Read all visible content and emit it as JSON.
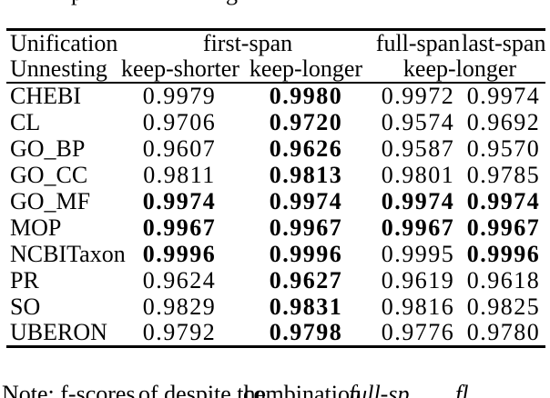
{
  "page": {
    "background": "#ffffff",
    "text_color": "#000000"
  },
  "top_caption_fragment": {
    "glyph1": "p",
    "glyph2": "g"
  },
  "table": {
    "header": {
      "unification": "Unification",
      "unnesting": "Unnesting",
      "first_span": "first-span",
      "full_span": "full-span",
      "last_span": "last-span",
      "keep_shorter": "keep-shorter",
      "keep_longer": "keep-longer",
      "keep_longer_right": "keep-longer"
    },
    "rows": [
      {
        "label": "CHEBI",
        "values": [
          "0.9979",
          "0.9980",
          "0.9972",
          "0.9974"
        ],
        "bold": [
          false,
          true,
          false,
          false
        ]
      },
      {
        "label": "CL",
        "values": [
          "0.9706",
          "0.9720",
          "0.9574",
          "0.9692"
        ],
        "bold": [
          false,
          true,
          false,
          false
        ]
      },
      {
        "label": "GO_BP",
        "values": [
          "0.9607",
          "0.9626",
          "0.9587",
          "0.9570"
        ],
        "bold": [
          false,
          true,
          false,
          false
        ]
      },
      {
        "label": "GO_CC",
        "values": [
          "0.9811",
          "0.9813",
          "0.9801",
          "0.9785"
        ],
        "bold": [
          false,
          true,
          false,
          false
        ]
      },
      {
        "label": "GO_MF",
        "values": [
          "0.9974",
          "0.9974",
          "0.9974",
          "0.9974"
        ],
        "bold": [
          true,
          true,
          true,
          true
        ]
      },
      {
        "label": "MOP",
        "values": [
          "0.9967",
          "0.9967",
          "0.9967",
          "0.9967"
        ],
        "bold": [
          true,
          true,
          true,
          true
        ]
      },
      {
        "label": "NCBITaxon",
        "values": [
          "0.9996",
          "0.9996",
          "0.9995",
          "0.9996"
        ],
        "bold": [
          true,
          true,
          false,
          true
        ]
      },
      {
        "label": "PR",
        "values": [
          "0.9624",
          "0.9627",
          "0.9619",
          "0.9618"
        ],
        "bold": [
          false,
          true,
          false,
          false
        ]
      },
      {
        "label": "SO",
        "values": [
          "0.9829",
          "0.9831",
          "0.9816",
          "0.9825"
        ],
        "bold": [
          false,
          true,
          false,
          false
        ]
      },
      {
        "label": "UBERON",
        "values": [
          "0.9792",
          "0.9798",
          "0.9776",
          "0.9780"
        ],
        "bold": [
          false,
          true,
          false,
          false
        ]
      }
    ]
  },
  "bottom_caption_fragment": {
    "seg1": "Note: f-scores",
    "seg2": "of despite the",
    "seg3": "combination",
    "seg4": "full-sp",
    "seg5": "fl"
  }
}
